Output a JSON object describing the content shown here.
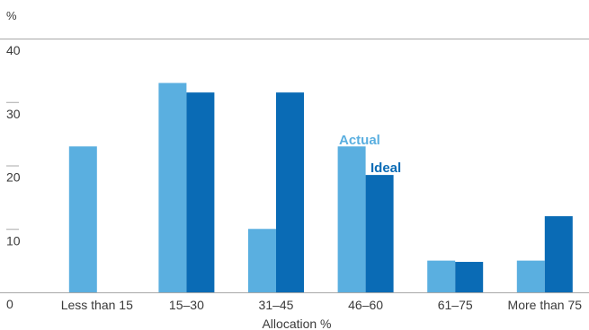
{
  "chart_data": {
    "type": "bar",
    "y_unit_label": "%",
    "xlabel": "Allocation %",
    "ylabel": "",
    "ylim": [
      0,
      40
    ],
    "y_ticks": [
      "0",
      "10",
      "20",
      "30",
      "40"
    ],
    "grid": false,
    "categories": [
      "Less than 15",
      "15–30",
      "31–45",
      "46–60",
      "61–75",
      "More than 75"
    ],
    "series": [
      {
        "name": "Actual",
        "color": "#5aafe0",
        "values": [
          23,
          33,
          10,
          23,
          5,
          5
        ]
      },
      {
        "name": "Ideal",
        "color": "#0a6bb5",
        "values": [
          0,
          31.5,
          31.5,
          18.5,
          4.8,
          12
        ]
      }
    ],
    "legend": {
      "placement": "inline-above-46-60-bars"
    }
  }
}
